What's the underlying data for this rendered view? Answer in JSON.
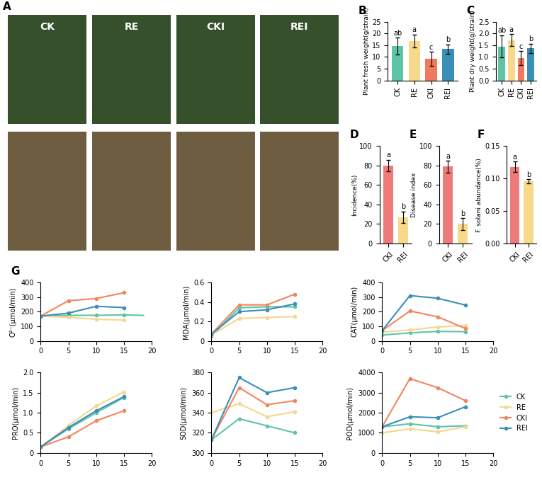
{
  "photos": {
    "title": "A",
    "labels": [
      "CK",
      "RE",
      "CKI",
      "REI"
    ]
  },
  "chart_data": [
    {
      "type": "bar",
      "title": "B",
      "ylabel": "Plant fresh weight(g/strain)",
      "categories": [
        "CK",
        "RE",
        "CKI",
        "REI"
      ],
      "values": [
        14.7,
        16.8,
        9.3,
        13.4
      ],
      "errors": [
        3.5,
        2.8,
        3.0,
        2.0
      ],
      "letters": [
        "ab",
        "a",
        "c",
        "b"
      ],
      "colors": [
        "#5ec4a8",
        "#f7d98b",
        "#ef7a5f",
        "#3a8fb7"
      ],
      "ylim": [
        0,
        25
      ],
      "yticks": [
        0,
        5,
        10,
        15,
        20,
        25
      ]
    },
    {
      "type": "bar",
      "title": "C",
      "ylabel": "Plant dry weight(g/strain)",
      "categories": [
        "CK",
        "RE",
        "CKI",
        "REI"
      ],
      "values": [
        1.45,
        1.72,
        0.95,
        1.37
      ],
      "errors": [
        0.48,
        0.25,
        0.3,
        0.2
      ],
      "letters": [
        "ab",
        "a",
        "c",
        "b"
      ],
      "colors": [
        "#5ec4a8",
        "#f7d98b",
        "#ef7a5f",
        "#3a8fb7"
      ],
      "ylim": [
        0,
        2.5
      ],
      "yticks": [
        {
          "value": 0,
          "label": "0.0"
        },
        0.5,
        {
          "value": 1,
          "label": "1.0"
        },
        1.5,
        {
          "value": 2,
          "label": "2.0"
        },
        2.5
      ]
    },
    {
      "type": "bar",
      "title": "D",
      "ylabel": "Incidence(%)",
      "categories": [
        "CKI",
        "REI"
      ],
      "values": [
        80,
        27
      ],
      "errors": [
        6,
        6
      ],
      "letters": [
        "a",
        "b"
      ],
      "colors": [
        "#ef7a7a",
        "#f7d98b"
      ],
      "ylim": [
        0,
        100
      ],
      "yticks": [
        0,
        20,
        40,
        60,
        80,
        100
      ]
    },
    {
      "type": "bar",
      "title": "E",
      "ylabel": "Disease index",
      "categories": [
        "CKI",
        "REI"
      ],
      "values": [
        79,
        20
      ],
      "errors": [
        6,
        6
      ],
      "letters": [
        "a",
        "b"
      ],
      "colors": [
        "#ef7a7a",
        "#f7d98b"
      ],
      "ylim": [
        0,
        100
      ],
      "yticks": [
        0,
        20,
        40,
        60,
        80,
        100
      ]
    },
    {
      "type": "bar",
      "title": "F",
      "ylabel": "F. solani abundance(%)",
      "categories": [
        "CKI",
        "REI"
      ],
      "values": [
        0.118,
        0.096
      ],
      "errors": [
        0.008,
        0.003
      ],
      "letters": [
        "a",
        "b"
      ],
      "colors": [
        "#ef7a7a",
        "#f7d98b"
      ],
      "ylim": [
        0,
        0.15
      ],
      "yticks": [
        {
          "value": 0,
          "label": "0.00"
        },
        0.05,
        {
          "value": 0.1,
          "label": "0.10"
        },
        0.15
      ]
    },
    {
      "type": "line",
      "title": "G",
      "ylabel": "O²⁻(μmol/min)",
      "marker": "o",
      "x": [
        0,
        5,
        10,
        15
      ],
      "xlim": [
        0,
        20
      ],
      "xticks": [
        0,
        5,
        10,
        15,
        20
      ],
      "ylim": [
        0,
        400
      ],
      "yticks": [
        0,
        100,
        200,
        300,
        400
      ],
      "series": [
        {
          "name": "CK",
          "color": "#5ec4a8",
          "x": [
            0,
            5,
            10,
            15,
            18.5
          ],
          "values": [
            170,
            175,
            175,
            178,
            175
          ]
        },
        {
          "name": "RE",
          "color": "#f5d78e",
          "values": [
            170,
            162,
            148,
            143
          ]
        },
        {
          "name": "CKI",
          "color": "#f2855f",
          "values": [
            170,
            275,
            290,
            330
          ]
        },
        {
          "name": "REI",
          "color": "#3a8fb7",
          "values": [
            170,
            190,
            237,
            228
          ]
        }
      ]
    },
    {
      "type": "line",
      "ylabel": "MDA(μmol/min)",
      "marker": "o",
      "x": [
        0,
        5,
        10,
        15
      ],
      "xlim": [
        0,
        20
      ],
      "xticks": [
        0,
        5,
        10,
        15,
        20
      ],
      "ylim": [
        0,
        0.6
      ],
      "yticks": [
        0,
        0.2,
        0.4,
        0.6
      ],
      "series": [
        {
          "name": "CK",
          "color": "#5ec4a8",
          "values": [
            0.05,
            0.34,
            0.35,
            0.35
          ]
        },
        {
          "name": "RE",
          "color": "#f5d78e",
          "values": [
            0.06,
            0.23,
            0.24,
            0.25
          ]
        },
        {
          "name": "CKI",
          "color": "#f2855f",
          "values": [
            0.07,
            0.37,
            0.37,
            0.48
          ]
        },
        {
          "name": "REI",
          "color": "#3a8fb7",
          "values": [
            0.07,
            0.3,
            0.32,
            0.38
          ]
        }
      ]
    },
    {
      "type": "line",
      "ylabel": "CAT(μmol/min)",
      "marker": "o",
      "x": [
        0,
        5,
        10,
        15
      ],
      "xlim": [
        0,
        20
      ],
      "xticks": [
        0,
        5,
        10,
        15,
        20
      ],
      "ylim": [
        0,
        400
      ],
      "yticks": [
        0,
        100,
        200,
        300,
        400
      ],
      "series": [
        {
          "name": "CK",
          "color": "#5ec4a8",
          "values": [
            40,
            55,
            65,
            63
          ]
        },
        {
          "name": "RE",
          "color": "#f5d78e",
          "values": [
            60,
            75,
            95,
            105
          ]
        },
        {
          "name": "CKI",
          "color": "#f2855f",
          "values": [
            70,
            205,
            165,
            85
          ]
        },
        {
          "name": "REI",
          "color": "#3a8fb7",
          "values": [
            70,
            310,
            292,
            245
          ]
        }
      ]
    },
    {
      "type": "line",
      "ylabel": "PRO(μmol/min)",
      "marker": "o",
      "x": [
        0,
        5,
        10,
        15
      ],
      "xlim": [
        0,
        20
      ],
      "xticks": [
        0,
        5,
        10,
        15,
        20
      ],
      "ylim": [
        0,
        2.0
      ],
      "yticks": [
        0,
        0.5,
        {
          "value": 1,
          "label": "1.0"
        },
        1.5,
        {
          "value": 2,
          "label": "2.0"
        }
      ],
      "series": [
        {
          "name": "CK",
          "color": "#5ec4a8",
          "values": [
            0.15,
            0.6,
            1.0,
            1.38
          ]
        },
        {
          "name": "RE",
          "color": "#f5d78e",
          "values": [
            0.15,
            0.68,
            1.17,
            1.52
          ]
        },
        {
          "name": "CKI",
          "color": "#f2855f",
          "values": [
            0.15,
            0.4,
            0.8,
            1.05
          ]
        },
        {
          "name": "REI",
          "color": "#3a8fb7",
          "values": [
            0.15,
            0.63,
            1.05,
            1.4
          ]
        }
      ]
    },
    {
      "type": "line",
      "ylabel": "SOD(μmol/min)",
      "marker": "o",
      "x": [
        0,
        5,
        10,
        15
      ],
      "xlim": [
        0,
        20
      ],
      "xticks": [
        0,
        5,
        10,
        15,
        20
      ],
      "ylim": [
        300,
        380
      ],
      "yticks": [
        300,
        320,
        340,
        360,
        380
      ],
      "series": [
        {
          "name": "CK",
          "color": "#5ec4a8",
          "values": [
            313,
            334,
            327,
            320
          ]
        },
        {
          "name": "RE",
          "color": "#f5d78e",
          "values": [
            340,
            349,
            336,
            341
          ]
        },
        {
          "name": "CKI",
          "color": "#f2855f",
          "values": [
            313,
            365,
            348,
            352
          ]
        },
        {
          "name": "REI",
          "color": "#3a8fb7",
          "values": [
            313,
            375,
            360,
            365
          ]
        }
      ]
    },
    {
      "type": "line",
      "ylabel": "POD(μmol/min)",
      "marker": "o",
      "legend": "center left",
      "x": [
        0,
        5,
        10,
        15
      ],
      "xlim": [
        0,
        20
      ],
      "xticks": [
        0,
        5,
        10,
        15,
        20
      ],
      "ylim": [
        0,
        4000
      ],
      "yticks": [
        0,
        1000,
        2000,
        3000,
        4000
      ],
      "series": [
        {
          "name": "CK",
          "color": "#5ec4a8",
          "values": [
            1300,
            1450,
            1300,
            1350
          ]
        },
        {
          "name": "RE",
          "color": "#f5d78e",
          "values": [
            1000,
            1200,
            1050,
            1300
          ]
        },
        {
          "name": "CKI",
          "color": "#f2855f",
          "values": [
            1300,
            3700,
            3250,
            2600
          ]
        },
        {
          "name": "REI",
          "color": "#3a8fb7",
          "values": [
            1300,
            1800,
            1750,
            2300
          ]
        }
      ]
    }
  ]
}
